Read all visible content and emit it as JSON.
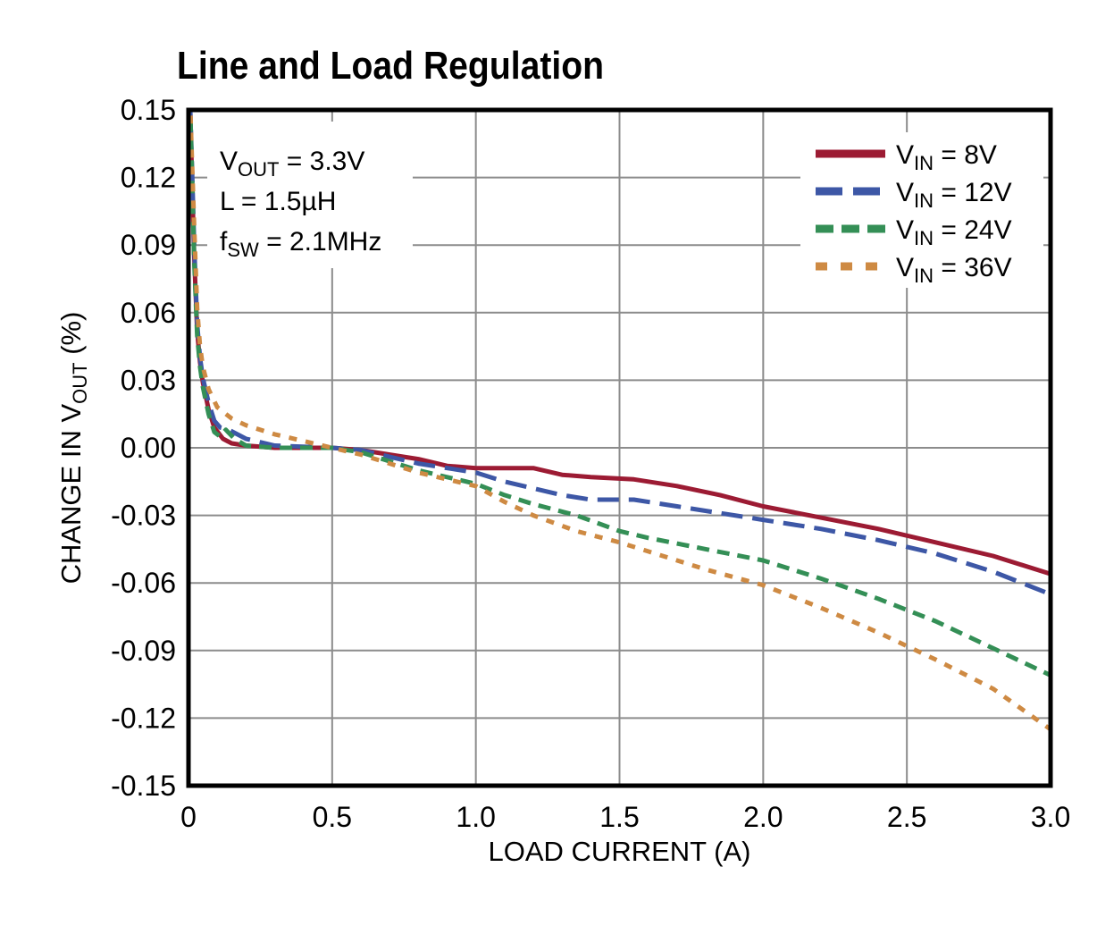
{
  "style": {
    "background": "#FFFFFF",
    "grid_color": "#8C8C8C",
    "axis_color": "#000000",
    "text_color": "#000000",
    "series_colors": {
      "vin8": "#9C1B33",
      "vin12": "#3D57A6",
      "vin24": "#348F56",
      "vin36": "#CE8A43"
    }
  },
  "chart_data": {
    "type": "line",
    "title": "Line and Load Regulation",
    "xlabel": "LOAD CURRENT (A)",
    "ylabel": {
      "pre": "CHANGE IN V",
      "sub": "OUT",
      "post": " (%)"
    },
    "xlim": [
      0,
      3
    ],
    "ylim": [
      -0.15,
      0.15
    ],
    "grid": true,
    "legend_position": "top-right",
    "xticks": {
      "values": [
        0,
        0.5,
        1.0,
        1.5,
        2.0,
        2.5,
        3.0
      ],
      "labels": [
        "0",
        "0.5",
        "1.0",
        "1.5",
        "2.0",
        "2.5",
        "3.0"
      ]
    },
    "yticks": {
      "values": [
        0.15,
        0.12,
        0.09,
        0.06,
        0.03,
        0.0,
        -0.03,
        -0.06,
        -0.09,
        -0.12,
        -0.15
      ],
      "labels": [
        "0.15",
        "0.12",
        "0.09",
        "0.06",
        "0.03",
        "0.00",
        "-0.03",
        "-0.06",
        "-0.09",
        "-0.12",
        "-0.15"
      ]
    },
    "annotation": {
      "lines": [
        {
          "pre": "V",
          "sub": "OUT",
          "post": " = 3.3V"
        },
        {
          "pre": "L",
          "sub": "",
          "post": " = 1.5µH"
        },
        {
          "pre": "f",
          "sub": "SW",
          "post": " = 2.1MHz"
        }
      ]
    },
    "series": [
      {
        "id": "vin8",
        "name": "VIN = 8V",
        "label": {
          "pre": "V",
          "sub": "IN",
          "post": " = 8V"
        },
        "color": "#9C1B33",
        "dash": "solid",
        "points": [
          [
            0.005,
            0.155
          ],
          [
            0.012,
            0.12
          ],
          [
            0.02,
            0.085
          ],
          [
            0.03,
            0.052
          ],
          [
            0.04,
            0.038
          ],
          [
            0.05,
            0.029
          ],
          [
            0.07,
            0.017
          ],
          [
            0.09,
            0.009
          ],
          [
            0.12,
            0.004
          ],
          [
            0.15,
            0.002
          ],
          [
            0.2,
            0.001
          ],
          [
            0.3,
            0.0
          ],
          [
            0.5,
            0.0
          ],
          [
            0.6,
            -0.001
          ],
          [
            0.7,
            -0.003
          ],
          [
            0.8,
            -0.005
          ],
          [
            0.9,
            -0.008
          ],
          [
            1.0,
            -0.009
          ],
          [
            1.2,
            -0.009
          ],
          [
            1.3,
            -0.012
          ],
          [
            1.4,
            -0.013
          ],
          [
            1.55,
            -0.014
          ],
          [
            1.7,
            -0.017
          ],
          [
            1.85,
            -0.021
          ],
          [
            2.0,
            -0.026
          ],
          [
            2.2,
            -0.031
          ],
          [
            2.4,
            -0.036
          ],
          [
            2.6,
            -0.042
          ],
          [
            2.8,
            -0.048
          ],
          [
            3.0,
            -0.056
          ]
        ]
      },
      {
        "id": "vin12",
        "name": "VIN = 12V",
        "label": {
          "pre": "V",
          "sub": "IN",
          "post": " = 12V"
        },
        "color": "#3D57A6",
        "dash": "long",
        "points": [
          [
            0.005,
            0.155
          ],
          [
            0.012,
            0.125
          ],
          [
            0.02,
            0.09
          ],
          [
            0.03,
            0.055
          ],
          [
            0.04,
            0.04
          ],
          [
            0.05,
            0.031
          ],
          [
            0.07,
            0.02
          ],
          [
            0.09,
            0.012
          ],
          [
            0.11,
            0.009
          ],
          [
            0.14,
            0.008
          ],
          [
            0.2,
            0.004
          ],
          [
            0.3,
            0.001
          ],
          [
            0.5,
            0.0
          ],
          [
            0.6,
            -0.001
          ],
          [
            0.7,
            -0.004
          ],
          [
            0.8,
            -0.007
          ],
          [
            0.9,
            -0.009
          ],
          [
            1.0,
            -0.011
          ],
          [
            1.1,
            -0.015
          ],
          [
            1.2,
            -0.018
          ],
          [
            1.3,
            -0.021
          ],
          [
            1.4,
            -0.023
          ],
          [
            1.55,
            -0.023
          ],
          [
            1.7,
            -0.026
          ],
          [
            1.85,
            -0.029
          ],
          [
            2.0,
            -0.032
          ],
          [
            2.2,
            -0.036
          ],
          [
            2.4,
            -0.041
          ],
          [
            2.6,
            -0.047
          ],
          [
            2.8,
            -0.055
          ],
          [
            3.0,
            -0.065
          ]
        ]
      },
      {
        "id": "vin24",
        "name": "VIN = 24V",
        "label": {
          "pre": "V",
          "sub": "IN",
          "post": " = 24V"
        },
        "color": "#348F56",
        "dash": "medium",
        "points": [
          [
            0.005,
            0.155
          ],
          [
            0.012,
            0.122
          ],
          [
            0.02,
            0.083
          ],
          [
            0.03,
            0.05
          ],
          [
            0.04,
            0.036
          ],
          [
            0.05,
            0.027
          ],
          [
            0.07,
            0.015
          ],
          [
            0.09,
            0.007
          ],
          [
            0.11,
            0.005
          ],
          [
            0.13,
            0.008
          ],
          [
            0.16,
            0.004
          ],
          [
            0.2,
            0.001
          ],
          [
            0.3,
            0.0
          ],
          [
            0.5,
            0.0
          ],
          [
            0.6,
            -0.002
          ],
          [
            0.7,
            -0.006
          ],
          [
            0.8,
            -0.01
          ],
          [
            0.9,
            -0.013
          ],
          [
            1.0,
            -0.016
          ],
          [
            1.1,
            -0.021
          ],
          [
            1.2,
            -0.025
          ],
          [
            1.35,
            -0.03
          ],
          [
            1.5,
            -0.037
          ],
          [
            1.6,
            -0.04
          ],
          [
            1.8,
            -0.045
          ],
          [
            2.0,
            -0.05
          ],
          [
            2.2,
            -0.058
          ],
          [
            2.4,
            -0.067
          ],
          [
            2.6,
            -0.077
          ],
          [
            2.8,
            -0.089
          ],
          [
            3.0,
            -0.101
          ]
        ]
      },
      {
        "id": "vin36",
        "name": "VIN = 36V",
        "label": {
          "pre": "V",
          "sub": "IN",
          "post": " = 36V"
        },
        "color": "#CE8A43",
        "dash": "short",
        "points": [
          [
            0.005,
            0.155
          ],
          [
            0.012,
            0.128
          ],
          [
            0.02,
            0.098
          ],
          [
            0.03,
            0.062
          ],
          [
            0.04,
            0.045
          ],
          [
            0.05,
            0.036
          ],
          [
            0.07,
            0.026
          ],
          [
            0.1,
            0.018
          ],
          [
            0.15,
            0.013
          ],
          [
            0.2,
            0.01
          ],
          [
            0.3,
            0.006
          ],
          [
            0.4,
            0.003
          ],
          [
            0.5,
            0.0
          ],
          [
            0.6,
            -0.003
          ],
          [
            0.7,
            -0.007
          ],
          [
            0.8,
            -0.011
          ],
          [
            0.9,
            -0.014
          ],
          [
            1.0,
            -0.017
          ],
          [
            1.1,
            -0.024
          ],
          [
            1.2,
            -0.03
          ],
          [
            1.35,
            -0.037
          ],
          [
            1.5,
            -0.042
          ],
          [
            1.6,
            -0.046
          ],
          [
            1.8,
            -0.054
          ],
          [
            2.0,
            -0.061
          ],
          [
            2.2,
            -0.071
          ],
          [
            2.4,
            -0.082
          ],
          [
            2.6,
            -0.094
          ],
          [
            2.8,
            -0.107
          ],
          [
            3.0,
            -0.125
          ]
        ]
      }
    ]
  }
}
